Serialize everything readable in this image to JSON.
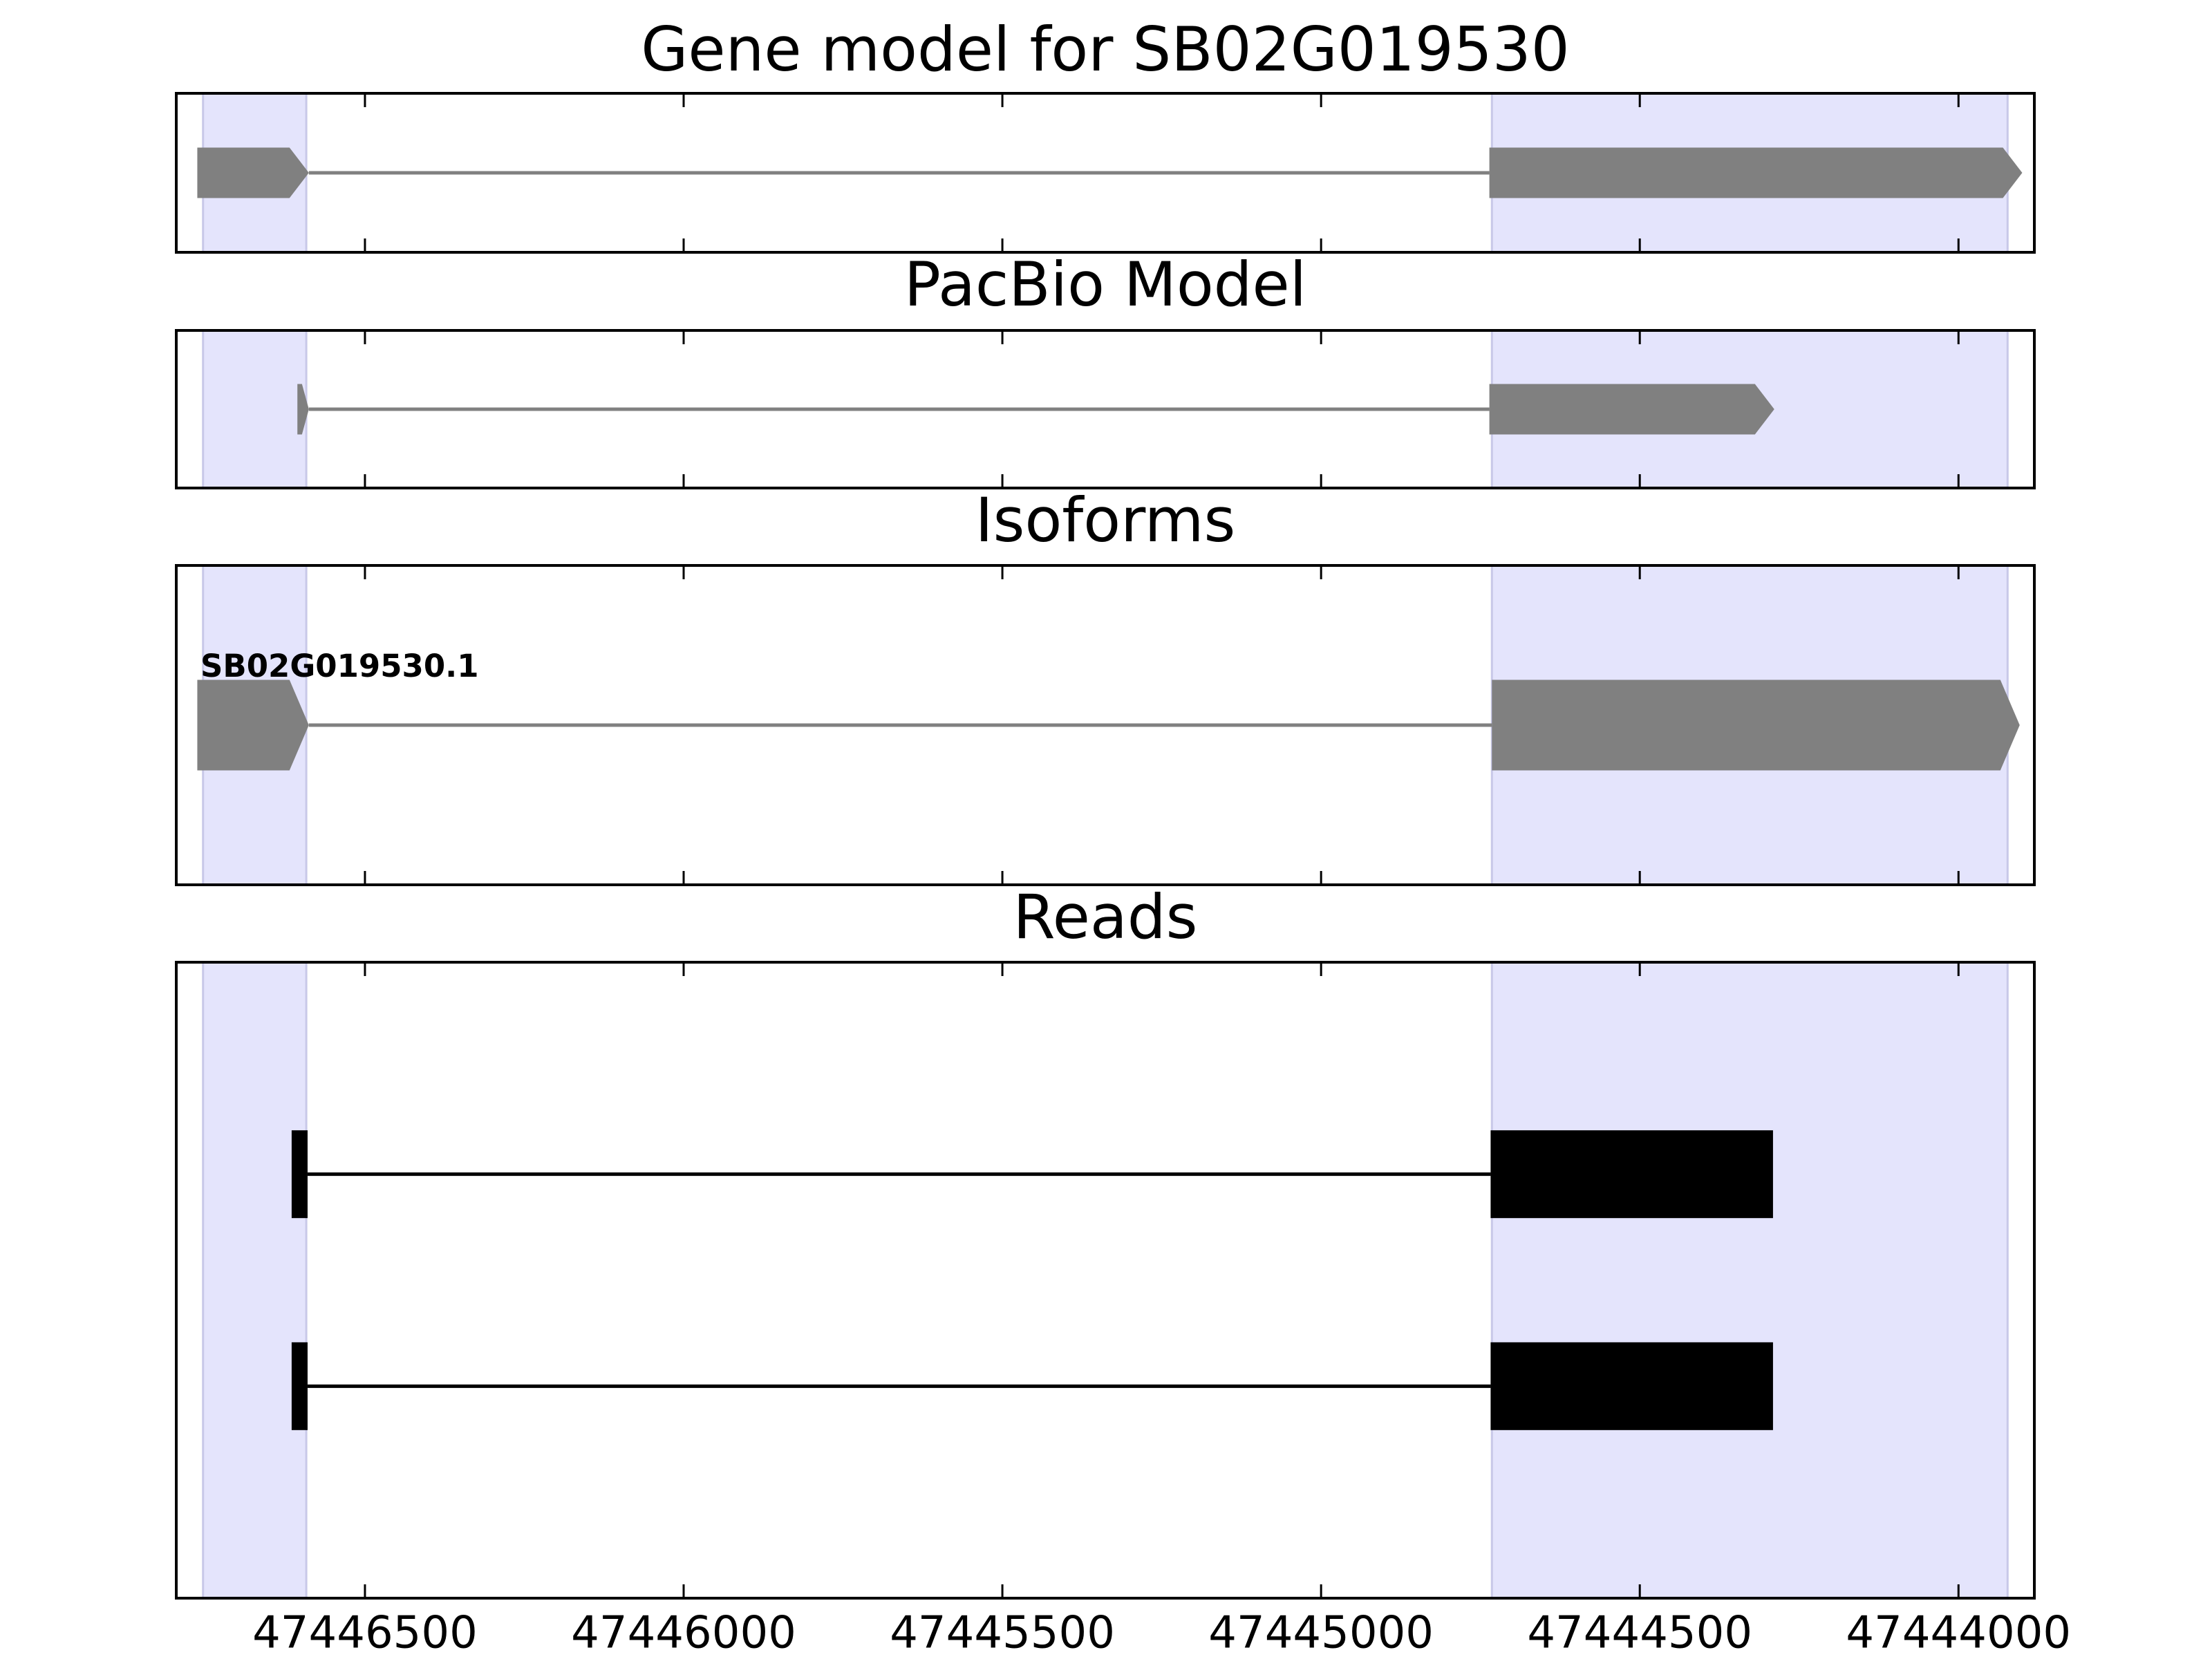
{
  "chart_data": {
    "type": "gene-tracks",
    "xlim": [
      47446796,
      47443881
    ],
    "xticks": [
      47446500,
      47446000,
      47445500,
      47445000,
      47444500,
      47444000
    ],
    "highlight_color": "#e4e4fc",
    "highlights": [
      [
        47446754,
        47446592
      ],
      [
        47444732,
        47443923
      ]
    ],
    "panels": [
      {
        "title": "Gene model for SB02G019530",
        "shape": "arrow",
        "color": "#808080",
        "features": [
          {
            "exons": [
              [
                47446763,
                47446588
              ],
              [
                47444736,
                47443900
              ]
            ]
          }
        ]
      },
      {
        "title": "PacBio Model",
        "shape": "arrow",
        "color": "#808080",
        "features": [
          {
            "exons": [
              [
                47446606,
                47446588
              ],
              [
                47444736,
                47444289
              ]
            ]
          }
        ]
      },
      {
        "title": "Isoforms",
        "shape": "arrow",
        "color": "#808080",
        "features": [
          {
            "label": "SB02G019530.1",
            "exons": [
              [
                47446763,
                47446588
              ],
              [
                47444732,
                47443904
              ]
            ]
          }
        ]
      },
      {
        "title": "Reads",
        "shape": "box",
        "color": "#000000",
        "features": [
          {
            "exons": [
              [
                47446615,
                47446590
              ],
              [
                47444734,
                47444291
              ]
            ]
          },
          {
            "exons": [
              [
                47446615,
                47446590
              ],
              [
                47444734,
                47444291
              ]
            ]
          }
        ]
      }
    ]
  }
}
